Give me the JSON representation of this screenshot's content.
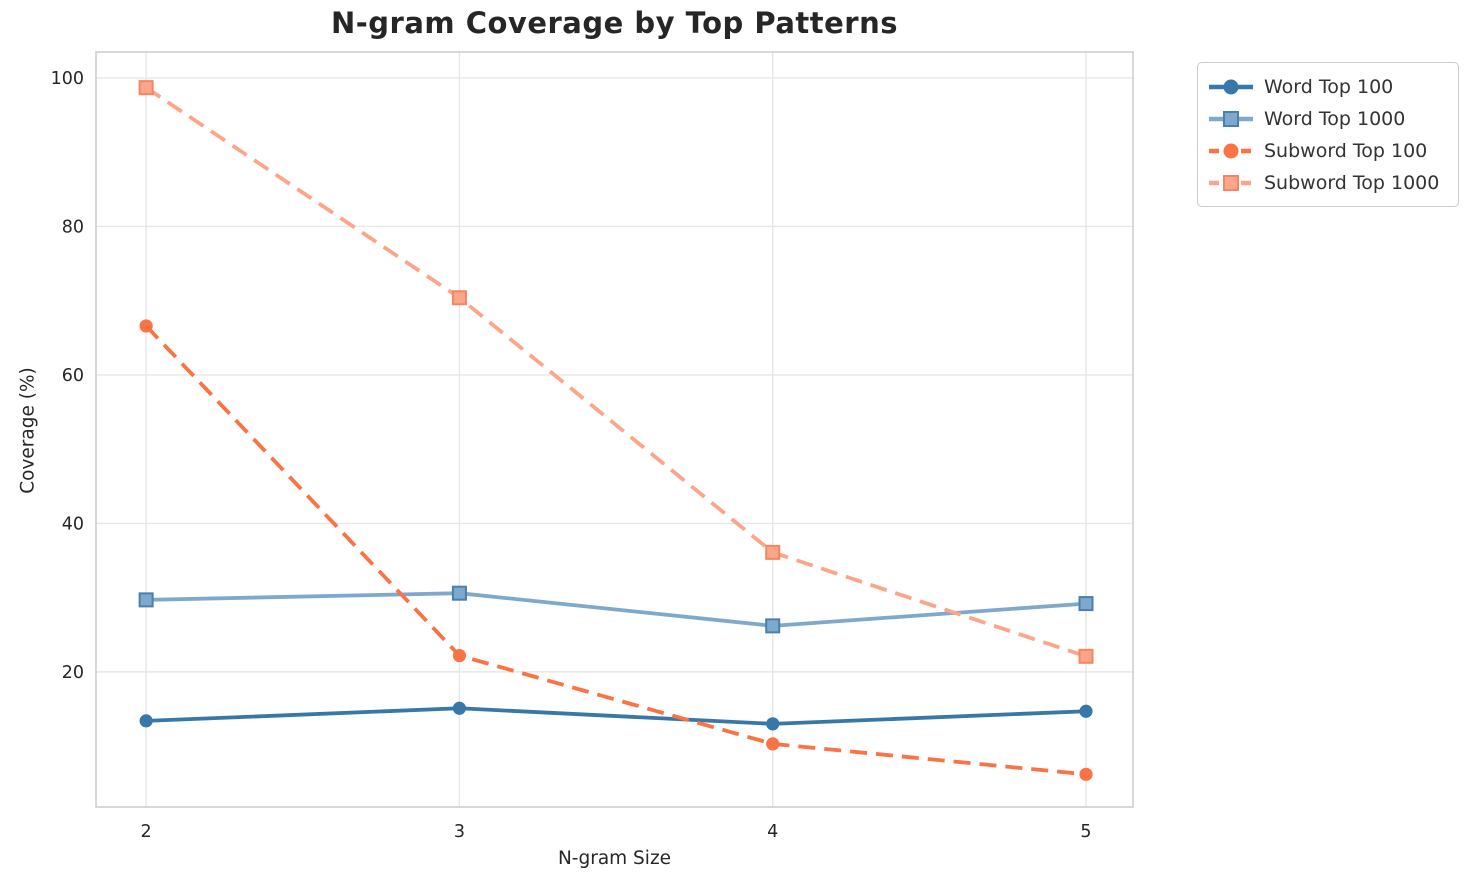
{
  "title": "N-gram Coverage by Top Patterns",
  "chart_data": {
    "type": "line",
    "title": "N-gram Coverage by Top Patterns",
    "xlabel": "N-gram Size",
    "ylabel": "Coverage (%)",
    "x": [
      2,
      3,
      4,
      5
    ],
    "series": [
      {
        "name": "Word Top 100",
        "values": [
          13.4,
          15.1,
          13.0,
          14.7
        ],
        "color": "#3878a8",
        "edge": "#2e6astroke",
        "marker": "circle",
        "line": "solid"
      },
      {
        "name": "Word Top 1000",
        "values": [
          29.7,
          30.6,
          26.2,
          29.2
        ],
        "color": "#7fa8cd",
        "edge": "#4a7fae",
        "marker": "square",
        "line": "solid"
      },
      {
        "name": "Subword Top 100",
        "values": [
          66.6,
          22.2,
          10.3,
          6.2
        ],
        "color": "#fb7244",
        "edge": "#fb7244",
        "marker": "circle",
        "line": "dashed"
      },
      {
        "name": "Subword Top 1000",
        "values": [
          98.7,
          70.4,
          36.1,
          22.1
        ],
        "color": "#fca58a",
        "edge": "#f4875f",
        "marker": "square",
        "line": "dashed"
      }
    ],
    "xticks": [
      2,
      3,
      4,
      5
    ],
    "yticks": [
      20,
      40,
      60,
      80,
      100
    ],
    "xlim": [
      1.84,
      5.15
    ],
    "ylim": [
      1.8,
      103.5
    ],
    "grid": true,
    "legend_position": "outside-upper-right",
    "grid_color": "#e7e7e7",
    "axis_color": "#cccccc",
    "tick_label_color": "#262626"
  }
}
